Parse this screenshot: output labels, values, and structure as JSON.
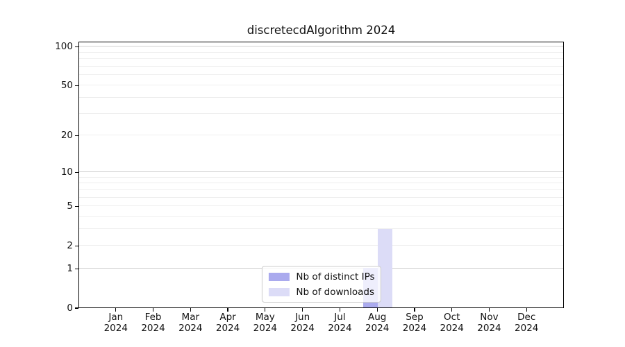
{
  "chart_data": {
    "type": "bar",
    "title": "discretecdAlgorithm 2024",
    "year": "2024",
    "categories": [
      "Jan",
      "Feb",
      "Mar",
      "Apr",
      "May",
      "Jun",
      "Jul",
      "Aug",
      "Sep",
      "Oct",
      "Nov",
      "Dec"
    ],
    "series": [
      {
        "name": "Nb of distinct IPs",
        "color": "#aaaaee",
        "values": [
          0,
          0,
          0,
          0,
          0,
          0,
          0,
          1,
          0,
          0,
          0,
          0
        ]
      },
      {
        "name": "Nb of downloads",
        "color": "#dcdcf7",
        "values": [
          0,
          0,
          0,
          0,
          0,
          0,
          0,
          3,
          0,
          0,
          0,
          0
        ]
      }
    ],
    "yticks": [
      0,
      1,
      2,
      5,
      10,
      20,
      50,
      100
    ],
    "ylim": [
      0,
      110
    ],
    "yscale": "log10(value+1)",
    "xlabel": "",
    "ylabel": "",
    "grid": "horizontal",
    "grid_major_at": [
      1,
      10,
      100
    ],
    "grid_minor_at": [
      2,
      3,
      4,
      5,
      6,
      7,
      8,
      9,
      20,
      30,
      40,
      50,
      60,
      70,
      80,
      90
    ],
    "legend_position": "lower center",
    "colors": {
      "axis": "#000000",
      "grid_major": "#d0d0d0",
      "grid_minor": "#eeeeee",
      "background": "#ffffff"
    }
  }
}
